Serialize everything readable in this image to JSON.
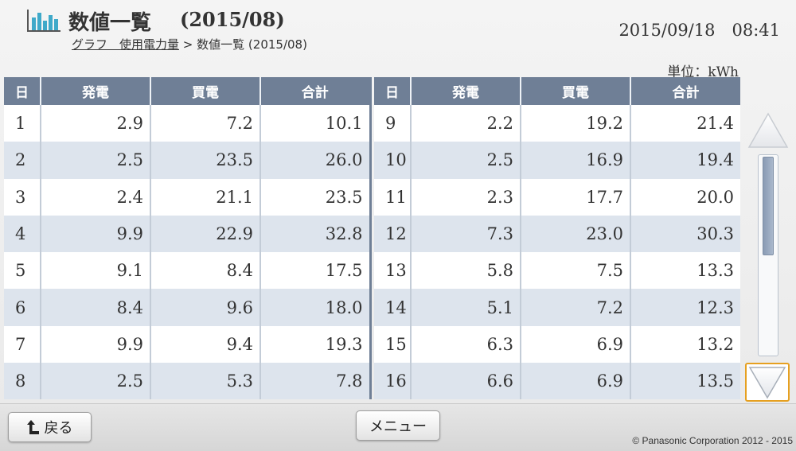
{
  "header": {
    "title": "数値一覧",
    "period": "(2015/08)",
    "breadcrumb_link": "グラフ　使用電力量",
    "breadcrumb_separator": ">",
    "breadcrumb_current": "数値一覧 (2015/08)",
    "datetime": "2015/09/18　08:41",
    "unit_prefix": "単位：",
    "unit_value": "kWh"
  },
  "icons": {
    "logo": "bar-chart-icon",
    "scroll_up": "triangle-up-icon",
    "scroll_down": "triangle-down-icon",
    "back": "back-arrow-icon"
  },
  "colors": {
    "header_bg": "#6f7f96",
    "row_alt": "#dde4ed",
    "scroll_focus": "#e6a020"
  },
  "table_left": {
    "headers": [
      "日",
      "発電",
      "買電",
      "合計"
    ],
    "rows": [
      [
        "1",
        "2.9",
        "7.2",
        "10.1"
      ],
      [
        "2",
        "2.5",
        "23.5",
        "26.0"
      ],
      [
        "3",
        "2.4",
        "21.1",
        "23.5"
      ],
      [
        "4",
        "9.9",
        "22.9",
        "32.8"
      ],
      [
        "5",
        "9.1",
        "8.4",
        "17.5"
      ],
      [
        "6",
        "8.4",
        "9.6",
        "18.0"
      ],
      [
        "7",
        "9.9",
        "9.4",
        "19.3"
      ],
      [
        "8",
        "2.5",
        "5.3",
        "7.8"
      ]
    ]
  },
  "table_right": {
    "headers": [
      "日",
      "発電",
      "買電",
      "合計"
    ],
    "rows": [
      [
        "9",
        "2.2",
        "19.2",
        "21.4"
      ],
      [
        "10",
        "2.5",
        "16.9",
        "19.4"
      ],
      [
        "11",
        "2.3",
        "17.7",
        "20.0"
      ],
      [
        "12",
        "7.3",
        "23.0",
        "30.3"
      ],
      [
        "13",
        "5.8",
        "7.5",
        "13.3"
      ],
      [
        "14",
        "5.1",
        "7.2",
        "12.3"
      ],
      [
        "15",
        "6.3",
        "6.9",
        "13.2"
      ],
      [
        "16",
        "6.6",
        "6.9",
        "13.5"
      ]
    ]
  },
  "scrollbar": {
    "position": 0,
    "visible_fraction": 0.5
  },
  "footer": {
    "back_label": "戻る",
    "menu_label": "メニュー",
    "copyright": "© Panasonic Corporation 2012 - 2015"
  }
}
